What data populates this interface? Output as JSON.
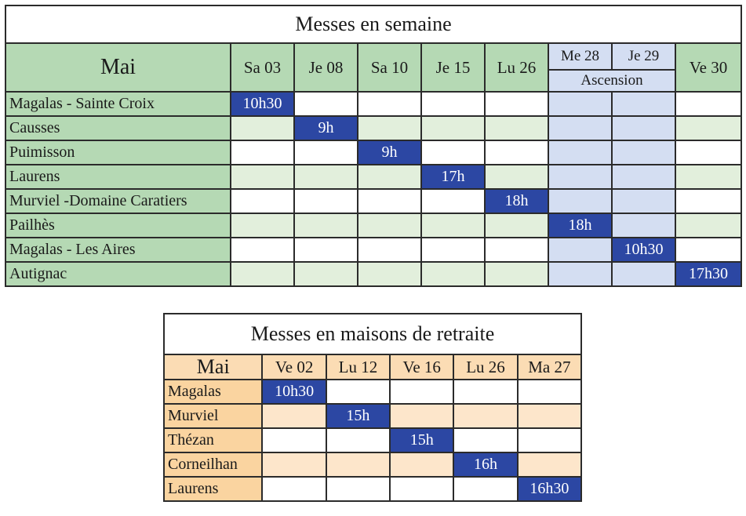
{
  "semaine": {
    "title": "Messes en semaine",
    "month": "Mai",
    "days": [
      "Sa 03",
      "Je 08",
      "Sa 10",
      "Je 15",
      "Lu 26",
      "Me 28",
      "Je 29",
      "Ve 30"
    ],
    "ascension_label": "Ascension",
    "rows": [
      {
        "place": "Magalas - Sainte Croix",
        "times": [
          "10h30",
          "",
          "",
          "",
          "",
          "",
          "",
          ""
        ]
      },
      {
        "place": "Causses",
        "times": [
          "",
          "9h",
          "",
          "",
          "",
          "",
          "",
          ""
        ]
      },
      {
        "place": "Puimisson",
        "times": [
          "",
          "",
          "9h",
          "",
          "",
          "",
          "",
          ""
        ]
      },
      {
        "place": "Laurens",
        "times": [
          "",
          "",
          "",
          "17h",
          "",
          "",
          "",
          ""
        ]
      },
      {
        "place": "Murviel -Domaine Caratiers",
        "times": [
          "",
          "",
          "",
          "",
          "18h",
          "",
          "",
          ""
        ]
      },
      {
        "place": "Pailhès",
        "times": [
          "",
          "",
          "",
          "",
          "",
          "18h",
          "",
          ""
        ]
      },
      {
        "place": "Magalas - Les  Aires",
        "times": [
          "",
          "",
          "",
          "",
          "",
          "",
          "10h30",
          ""
        ]
      },
      {
        "place": "Autignac",
        "times": [
          "",
          "",
          "",
          "",
          "",
          "",
          "",
          "17h30"
        ]
      }
    ]
  },
  "retraite": {
    "title": "Messes en maisons de retraite",
    "month": "Mai",
    "days": [
      "Ve 02",
      "Lu 12",
      "Ve 16",
      "Lu 26",
      "Ma 27"
    ],
    "rows": [
      {
        "place": "Magalas",
        "times": [
          "10h30",
          "",
          "",
          "",
          ""
        ]
      },
      {
        "place": "Murviel",
        "times": [
          "",
          "15h",
          "",
          "",
          ""
        ]
      },
      {
        "place": "Thézan",
        "times": [
          "",
          "",
          "15h",
          "",
          ""
        ]
      },
      {
        "place": "Corneilhan",
        "times": [
          "",
          "",
          "",
          "16h",
          ""
        ]
      },
      {
        "place": "Laurens",
        "times": [
          "",
          "",
          "",
          "",
          "16h30"
        ]
      }
    ]
  },
  "colors": {
    "green_header": "#b5d9b4",
    "green_stripe": "#e2efdc",
    "ascension_blue": "#d4def2",
    "orange_header": "#fbdcb4",
    "orange_stripe": "#fde6cb",
    "filled_blue": "#2c47a3"
  }
}
